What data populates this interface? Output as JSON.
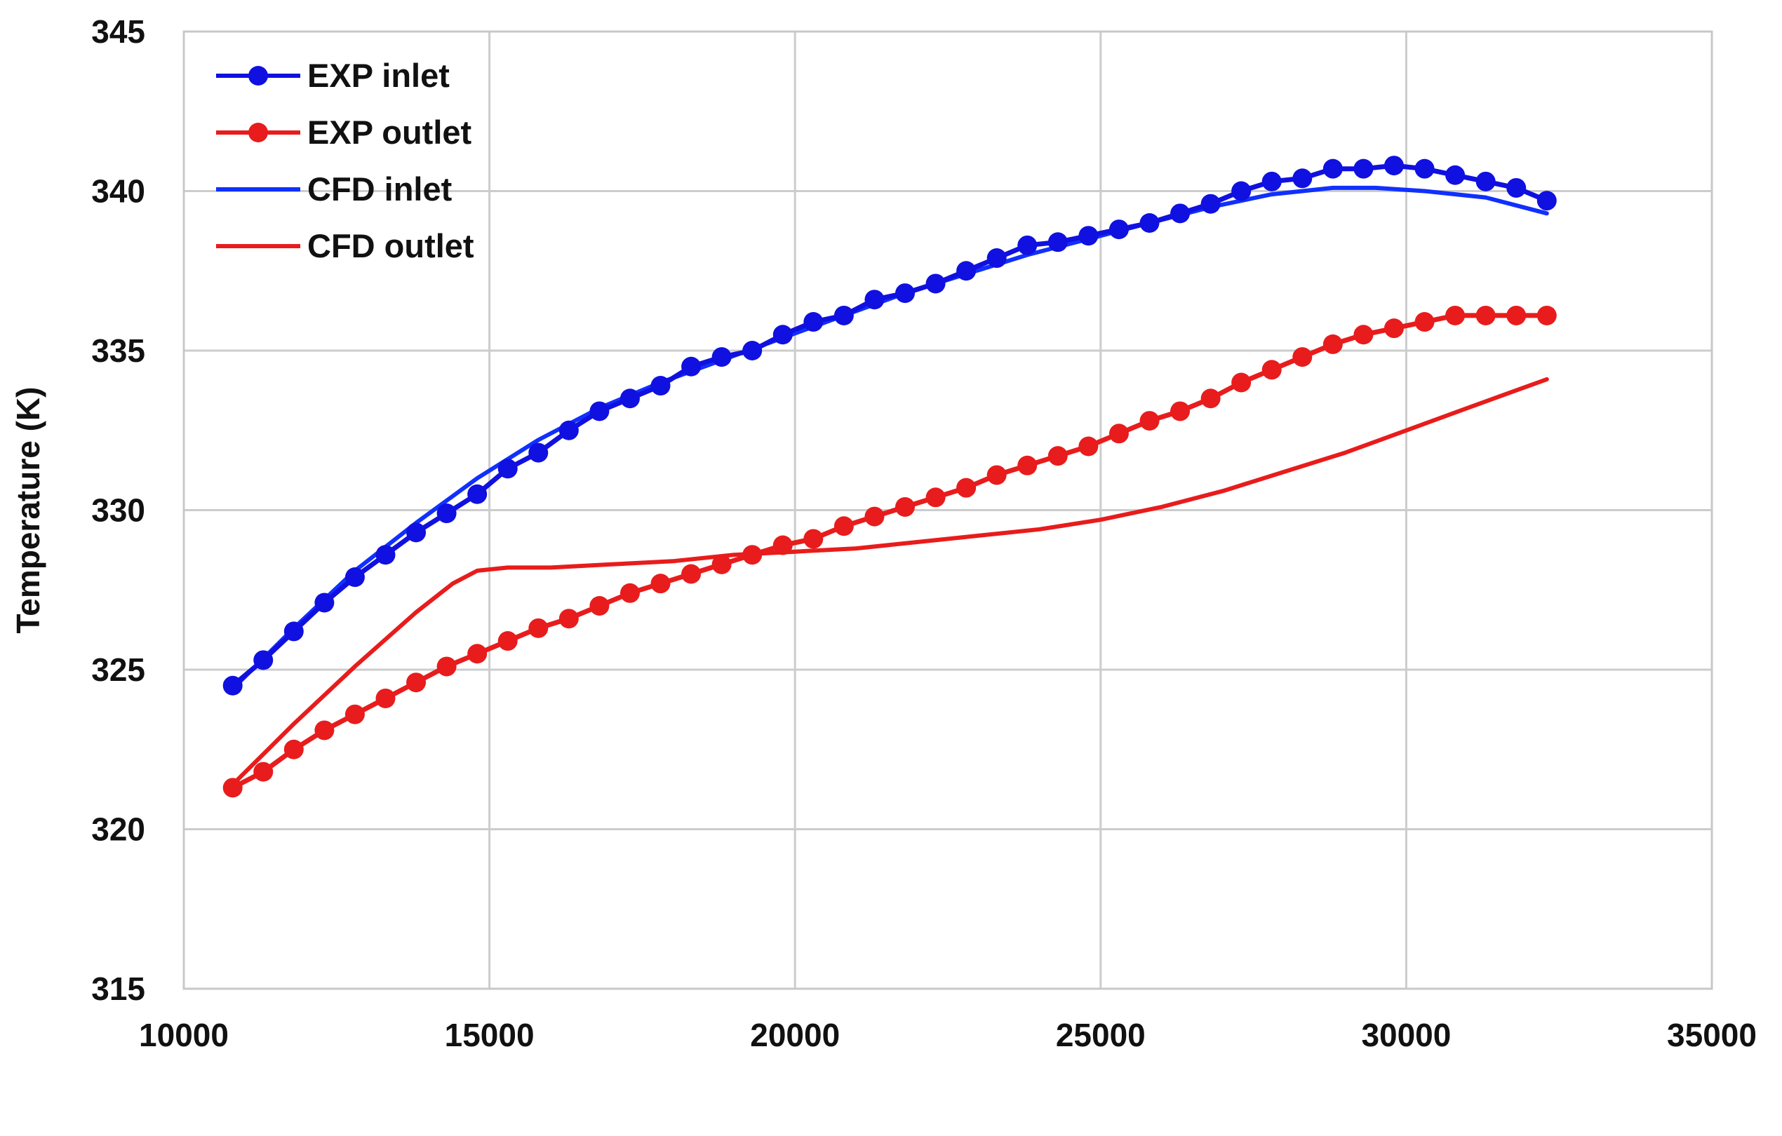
{
  "chart_data": {
    "type": "line",
    "title": "",
    "xlabel": "",
    "ylabel": "Temperature (K)",
    "xlim": [
      10000,
      35000
    ],
    "ylim": [
      315,
      345
    ],
    "xticks": [
      10000,
      15000,
      20000,
      25000,
      30000,
      35000
    ],
    "yticks": [
      315,
      320,
      325,
      330,
      335,
      340,
      345
    ],
    "grid": true,
    "legend_position": "top-left",
    "series": [
      {
        "name": "EXP inlet",
        "color": "#1010e0",
        "style": "line-markers",
        "x": [
          10800,
          11300,
          11800,
          12300,
          12800,
          13300,
          13800,
          14300,
          14800,
          15300,
          15800,
          16300,
          16800,
          17300,
          17800,
          18300,
          18800,
          19300,
          19800,
          20300,
          20800,
          21300,
          21800,
          22300,
          22800,
          23300,
          23800,
          24300,
          24800,
          25300,
          25800,
          26300,
          26800,
          27300,
          27800,
          28300,
          28800,
          29300,
          29800,
          30300,
          30800,
          31300,
          31800,
          32300
        ],
        "y": [
          324.5,
          325.3,
          326.2,
          327.1,
          327.9,
          328.6,
          329.3,
          329.9,
          330.5,
          331.3,
          331.8,
          332.5,
          333.1,
          333.5,
          333.9,
          334.5,
          334.8,
          335.0,
          335.5,
          335.9,
          336.1,
          336.6,
          336.8,
          337.1,
          337.5,
          337.9,
          338.3,
          338.4,
          338.6,
          338.8,
          339.0,
          339.3,
          339.6,
          340.0,
          340.3,
          340.4,
          340.7,
          340.7,
          340.8,
          340.7,
          340.5,
          340.3,
          340.1,
          339.7
        ]
      },
      {
        "name": "EXP outlet",
        "color": "#e81c1c",
        "style": "line-markers",
        "x": [
          10800,
          11300,
          11800,
          12300,
          12800,
          13300,
          13800,
          14300,
          14800,
          15300,
          15800,
          16300,
          16800,
          17300,
          17800,
          18300,
          18800,
          19300,
          19800,
          20300,
          20800,
          21300,
          21800,
          22300,
          22800,
          23300,
          23800,
          24300,
          24800,
          25300,
          25800,
          26300,
          26800,
          27300,
          27800,
          28300,
          28800,
          29300,
          29800,
          30300,
          30800,
          31300,
          31800,
          32300
        ],
        "y": [
          321.3,
          321.8,
          322.5,
          323.1,
          323.6,
          324.1,
          324.6,
          325.1,
          325.5,
          325.9,
          326.3,
          326.6,
          327.0,
          327.4,
          327.7,
          328.0,
          328.3,
          328.6,
          328.9,
          329.1,
          329.5,
          329.8,
          330.1,
          330.4,
          330.7,
          331.1,
          331.4,
          331.7,
          332.0,
          332.4,
          332.8,
          333.1,
          333.5,
          334.0,
          334.4,
          334.8,
          335.2,
          335.5,
          335.7,
          335.9,
          336.1,
          336.1,
          336.1,
          336.1
        ]
      },
      {
        "name": "CFD inlet",
        "color": "#1030ff",
        "style": "line",
        "x": [
          10800,
          11800,
          12800,
          13800,
          14800,
          15800,
          16800,
          17800,
          18800,
          19800,
          20800,
          21800,
          22800,
          23800,
          24800,
          25800,
          26800,
          27800,
          28800,
          29500,
          30300,
          31300,
          32300
        ],
        "y": [
          324.4,
          326.3,
          328.1,
          329.6,
          331.0,
          332.2,
          333.2,
          334.0,
          334.7,
          335.4,
          336.1,
          336.8,
          337.4,
          338.0,
          338.5,
          339.0,
          339.5,
          339.9,
          340.1,
          340.1,
          340.0,
          339.8,
          339.3
        ]
      },
      {
        "name": "CFD outlet",
        "color": "#e81c1c",
        "style": "line",
        "x": [
          10800,
          11800,
          12800,
          13800,
          14400,
          14800,
          15300,
          16000,
          17000,
          18000,
          19000,
          20000,
          21000,
          22000,
          23000,
          24000,
          25000,
          26000,
          27000,
          28000,
          29000,
          30000,
          31000,
          32300
        ],
        "y": [
          321.4,
          323.3,
          325.1,
          326.8,
          327.7,
          328.1,
          328.2,
          328.2,
          328.3,
          328.4,
          328.6,
          328.7,
          328.8,
          329.0,
          329.2,
          329.4,
          329.7,
          330.1,
          330.6,
          331.2,
          331.8,
          332.5,
          333.2,
          334.1
        ]
      }
    ]
  }
}
